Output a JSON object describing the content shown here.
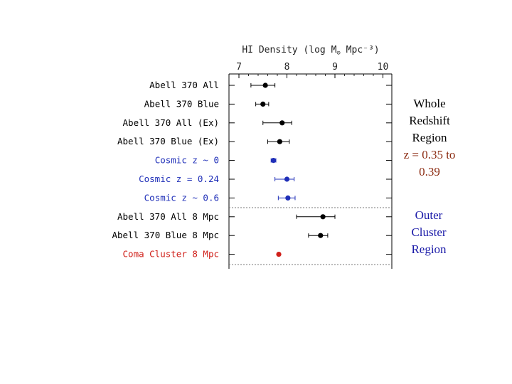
{
  "chart_data": {
    "type": "scatter",
    "title_prefix": "HI Density (log M",
    "title_sub": "⊙",
    "title_suffix": " Mpc⁻³)",
    "xlim": [
      6.8,
      10.2
    ],
    "x_ticks": [
      "7",
      "8",
      "9",
      "10"
    ],
    "x_tick_values": [
      7,
      8,
      9,
      10
    ],
    "rows": [
      {
        "label": "Abell 370 All",
        "value": 7.55,
        "err_low": 0.3,
        "err_high": 0.2,
        "color": "#000000"
      },
      {
        "label": "Abell 370 Blue",
        "value": 7.5,
        "err_low": 0.15,
        "err_high": 0.12,
        "color": "#000000"
      },
      {
        "label": "Abell 370 All (Ex)",
        "value": 7.9,
        "err_low": 0.4,
        "err_high": 0.2,
        "color": "#000000"
      },
      {
        "label": "Abell 370 Blue (Ex)",
        "value": 7.85,
        "err_low": 0.25,
        "err_high": 0.2,
        "color": "#000000"
      },
      {
        "label": "Cosmic z ~ 0",
        "value": 7.72,
        "err_low": 0.05,
        "err_high": 0.05,
        "color": "#1f2fb8"
      },
      {
        "label": "Cosmic z = 0.24",
        "value": 8.0,
        "err_low": 0.25,
        "err_high": 0.15,
        "color": "#1f2fb8"
      },
      {
        "label": "Cosmic z ~ 0.6",
        "value": 8.02,
        "err_low": 0.2,
        "err_high": 0.15,
        "color": "#1f2fb8"
      },
      {
        "label": "Abell 370 All 8 Mpc",
        "value": 8.75,
        "err_low": 0.55,
        "err_high": 0.25,
        "color": "#000000"
      },
      {
        "label": "Abell 370 Blue 8 Mpc",
        "value": 8.7,
        "err_low": 0.25,
        "err_high": 0.15,
        "color": "#000000"
      },
      {
        "label": "Coma Cluster 8 Mpc",
        "value": 7.83,
        "err_low": 0.0,
        "err_high": 0.0,
        "color": "#d0201a"
      }
    ]
  },
  "annotations": {
    "whole_region": [
      "Whole",
      "Redshift",
      "Region"
    ],
    "z_range": [
      "z = 0.35 to",
      "0.39"
    ],
    "outer_region": [
      "Outer",
      "Cluster",
      "Region"
    ]
  }
}
